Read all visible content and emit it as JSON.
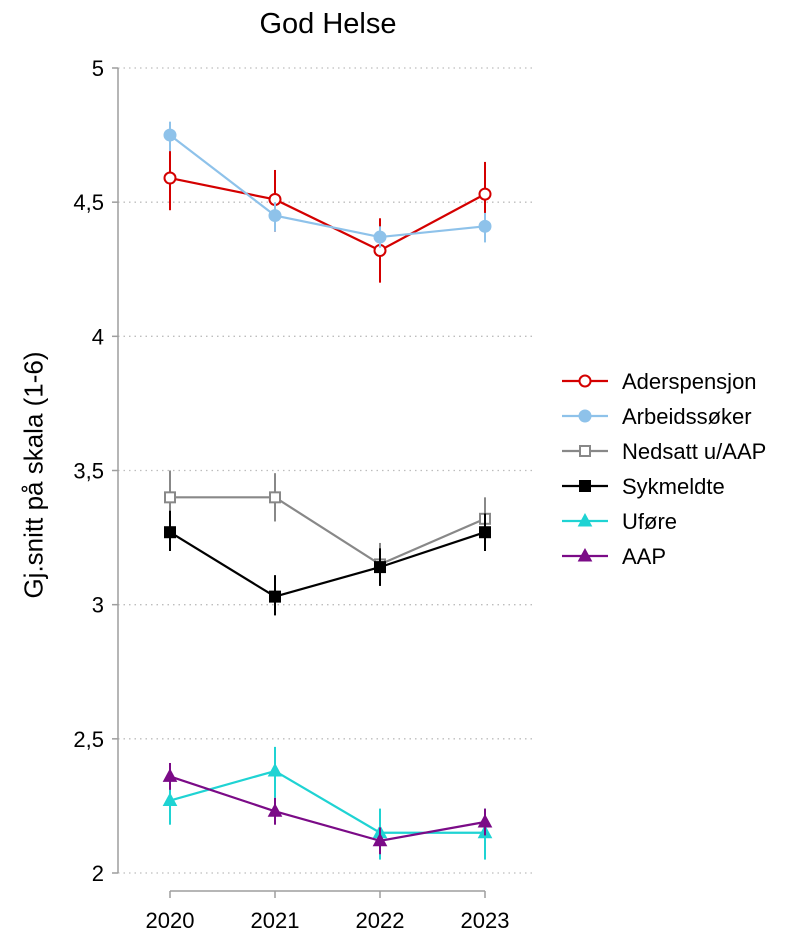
{
  "chart_data": {
    "type": "line",
    "title": "God Helse",
    "xlabel": "",
    "ylabel": "Gj.snitt på skala (1-6)",
    "x": [
      "2020",
      "2021",
      "2022",
      "2023"
    ],
    "ylim": [
      2,
      5
    ],
    "yticks": [
      2,
      2.5,
      3,
      3.5,
      4,
      4.5,
      5
    ],
    "ytick_labels": [
      "2",
      "2,5",
      "3",
      "3,5",
      "4",
      "4,5",
      "5"
    ],
    "grid": "horizontal dotted",
    "legend_position": "right",
    "series": [
      {
        "name": "Aderspensjon",
        "color": "#d40000",
        "marker": "circle-open",
        "values": [
          4.59,
          4.51,
          4.32,
          4.53
        ],
        "err_low": [
          4.47,
          4.39,
          4.2,
          4.42
        ],
        "err_high": [
          4.7,
          4.62,
          4.44,
          4.65
        ]
      },
      {
        "name": "Arbeidssøker",
        "color": "#8ec2ea",
        "marker": "circle-filled",
        "values": [
          4.75,
          4.45,
          4.37,
          4.41
        ],
        "err_low": [
          4.69,
          4.39,
          4.33,
          4.35
        ],
        "err_high": [
          4.8,
          4.5,
          4.41,
          4.46
        ]
      },
      {
        "name": "Nedsatt u/AAP",
        "color": "#888888",
        "marker": "square-open",
        "values": [
          3.4,
          3.4,
          3.15,
          3.32
        ],
        "err_low": [
          3.3,
          3.31,
          3.07,
          3.24
        ],
        "err_high": [
          3.5,
          3.49,
          3.23,
          3.4
        ]
      },
      {
        "name": "Sykmeldte",
        "color": "#000000",
        "marker": "square-filled",
        "values": [
          3.27,
          3.03,
          3.14,
          3.27
        ],
        "err_low": [
          3.2,
          2.96,
          3.07,
          3.2
        ],
        "err_high": [
          3.35,
          3.11,
          3.21,
          3.34
        ]
      },
      {
        "name": "Uføre",
        "color": "#1fd3d3",
        "marker": "triangle-filled",
        "values": [
          2.27,
          2.38,
          2.15,
          2.15
        ],
        "err_low": [
          2.18,
          2.28,
          2.05,
          2.05
        ],
        "err_high": [
          2.37,
          2.47,
          2.24,
          2.24
        ]
      },
      {
        "name": "AAP",
        "color": "#7b0b87",
        "marker": "triangle-filled",
        "values": [
          2.36,
          2.23,
          2.12,
          2.19
        ],
        "err_low": [
          2.31,
          2.18,
          2.07,
          2.14
        ],
        "err_high": [
          2.41,
          2.28,
          2.17,
          2.24
        ]
      }
    ]
  }
}
